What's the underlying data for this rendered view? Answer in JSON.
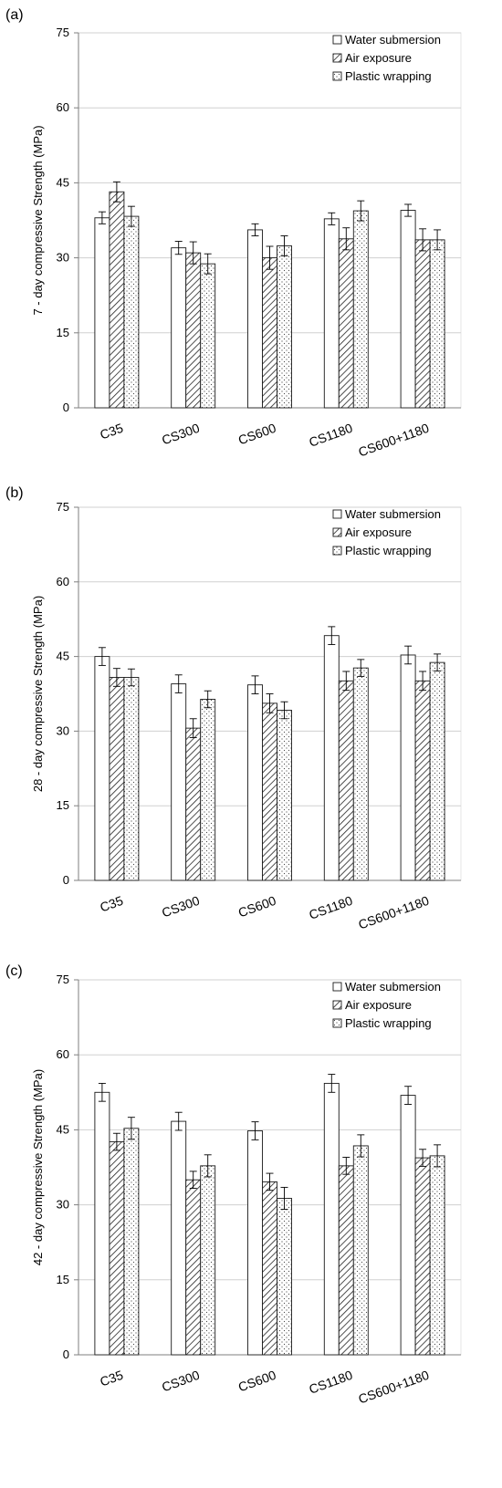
{
  "colors": {
    "background": "#ffffff",
    "gridline": "#d0d0d0",
    "axis": "#7f7f7f",
    "bar_stroke": "#1a1a1a"
  },
  "legend_placement": "top-right",
  "chart_data": [
    {
      "panel_label": "(a)",
      "type": "bar",
      "ylabel": "7 - day compressive Strength (MPa)",
      "xlabel": "",
      "ylim": [
        0,
        75
      ],
      "yticks": [
        0,
        15,
        30,
        45,
        60,
        75
      ],
      "grid": true,
      "categories": [
        "C35",
        "CS300",
        "CS600",
        "CS1180",
        "CS600+1180"
      ],
      "series": [
        {
          "name": "Water submersion",
          "pattern": "plain",
          "values": [
            38.0,
            32.0,
            35.6,
            37.8,
            39.5
          ],
          "errors": [
            1.2,
            1.3,
            1.2,
            1.2,
            1.2
          ]
        },
        {
          "name": "Air exposure",
          "pattern": "hatch",
          "values": [
            43.2,
            31.0,
            30.0,
            33.8,
            33.6
          ],
          "errors": [
            2.0,
            2.2,
            2.3,
            2.2,
            2.2
          ]
        },
        {
          "name": "Plastic wrapping",
          "pattern": "dotted",
          "values": [
            38.3,
            28.8,
            32.4,
            39.4,
            33.6
          ],
          "errors": [
            2.0,
            2.0,
            2.0,
            2.0,
            2.0
          ]
        }
      ]
    },
    {
      "panel_label": "(b)",
      "type": "bar",
      "ylabel": "28 - day compressive Strength (MPa)",
      "xlabel": "",
      "ylim": [
        0,
        75
      ],
      "yticks": [
        0,
        15,
        30,
        45,
        60,
        75
      ],
      "grid": true,
      "categories": [
        "C35",
        "CS300",
        "CS600",
        "CS1180",
        "CS600+1180"
      ],
      "series": [
        {
          "name": "Water submersion",
          "pattern": "plain",
          "values": [
            45.0,
            39.5,
            39.3,
            49.2,
            45.3
          ],
          "errors": [
            1.8,
            1.8,
            1.8,
            1.8,
            1.8
          ]
        },
        {
          "name": "Air exposure",
          "pattern": "hatch",
          "values": [
            40.8,
            30.6,
            35.6,
            40.1,
            40.1
          ],
          "errors": [
            1.8,
            1.9,
            1.9,
            1.9,
            1.9
          ]
        },
        {
          "name": "Plastic wrapping",
          "pattern": "dotted",
          "values": [
            40.8,
            36.4,
            34.2,
            42.7,
            43.8
          ],
          "errors": [
            1.7,
            1.7,
            1.7,
            1.7,
            1.7
          ]
        }
      ]
    },
    {
      "panel_label": "(c)",
      "type": "bar",
      "ylabel": "42 - day compressive Strength (MPa)",
      "xlabel": "",
      "ylim": [
        0,
        75
      ],
      "yticks": [
        0,
        15,
        30,
        45,
        60,
        75
      ],
      "grid": true,
      "categories": [
        "C35",
        "CS300",
        "CS600",
        "CS1180",
        "CS600+1180"
      ],
      "series": [
        {
          "name": "Water submersion",
          "pattern": "plain",
          "values": [
            52.5,
            46.7,
            44.8,
            54.3,
            51.9
          ],
          "errors": [
            1.8,
            1.8,
            1.8,
            1.8,
            1.8
          ]
        },
        {
          "name": "Air exposure",
          "pattern": "hatch",
          "values": [
            42.6,
            35.0,
            34.6,
            37.8,
            39.4
          ],
          "errors": [
            1.7,
            1.7,
            1.7,
            1.7,
            1.7
          ]
        },
        {
          "name": "Plastic wrapping",
          "pattern": "dotted",
          "values": [
            45.3,
            37.8,
            31.3,
            41.8,
            39.8
          ],
          "errors": [
            2.2,
            2.2,
            2.2,
            2.2,
            2.2
          ]
        }
      ]
    }
  ]
}
